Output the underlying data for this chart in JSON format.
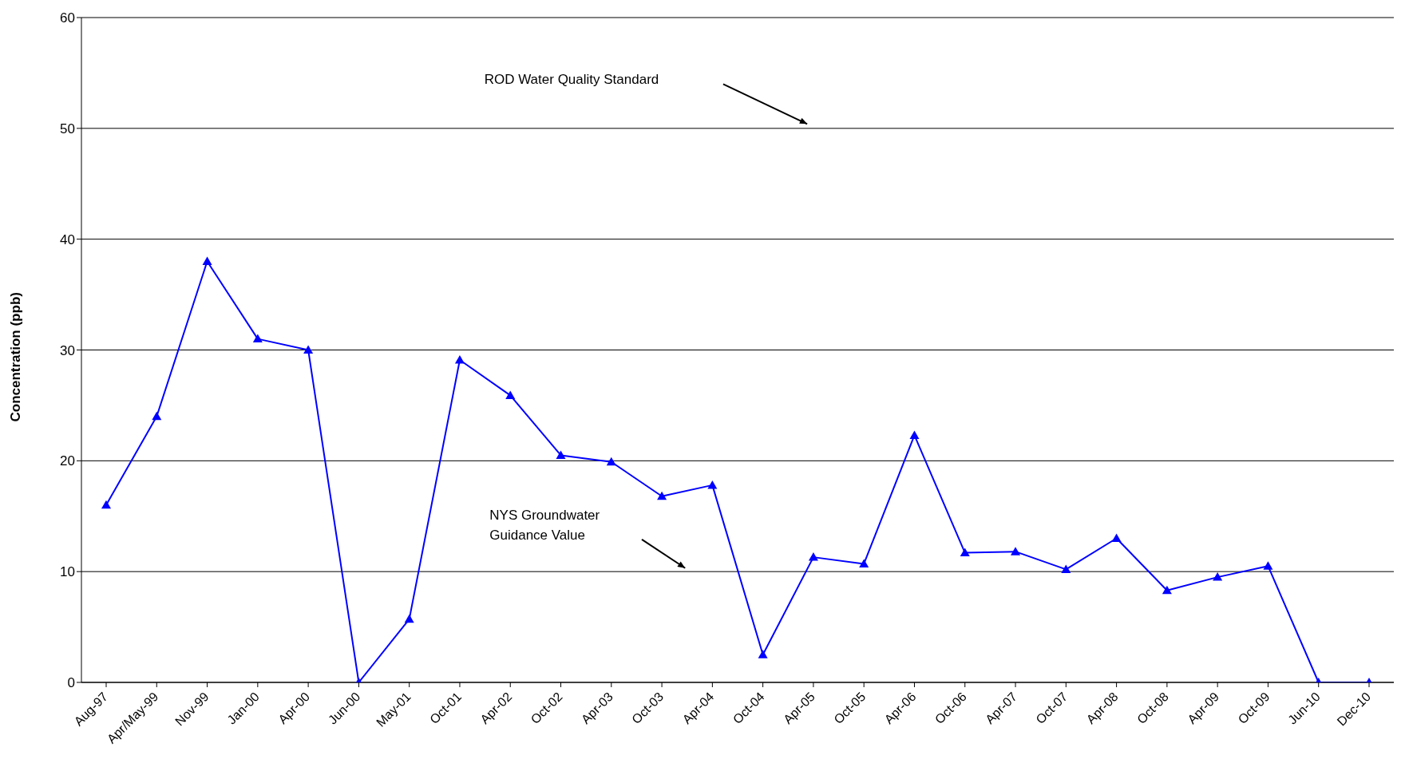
{
  "chart_data": {
    "type": "line",
    "ylabel": "Concentration (ppb)",
    "categories": [
      "Aug-97",
      "Apr/May-99",
      "Nov-99",
      "Jan-00",
      "Apr-00",
      "Jun-00",
      "May-01",
      "Oct-01",
      "Apr-02",
      "Oct-02",
      "Apr-03",
      "Oct-03",
      "Apr-04",
      "Oct-04",
      "Apr-05",
      "Oct-05",
      "Apr-06",
      "Oct-06",
      "Apr-07",
      "Oct-07",
      "Apr-08",
      "Oct-08",
      "Apr-09",
      "Oct-09",
      "Jun-10",
      "Dec-10"
    ],
    "series": [
      {
        "color": "#0000ff",
        "values": [
          16.0,
          24.0,
          38.0,
          31.0,
          30.0,
          0,
          5.7,
          29.1,
          25.9,
          20.5,
          19.9,
          16.8,
          17.8,
          2.5,
          11.3,
          10.7,
          22.3,
          11.7,
          11.8,
          10.2,
          13.0,
          8.3,
          9.5,
          10.5,
          0,
          0
        ]
      }
    ],
    "ylim": [
      0,
      60
    ],
    "yticks": [
      0,
      10,
      20,
      30,
      40,
      50,
      60
    ],
    "grid": "y",
    "legend": false,
    "marker": "triangle",
    "line_style": "solid",
    "annotations": [
      "ROD Water Quality Standard",
      "NYS Groundwater Guidance Value"
    ]
  }
}
